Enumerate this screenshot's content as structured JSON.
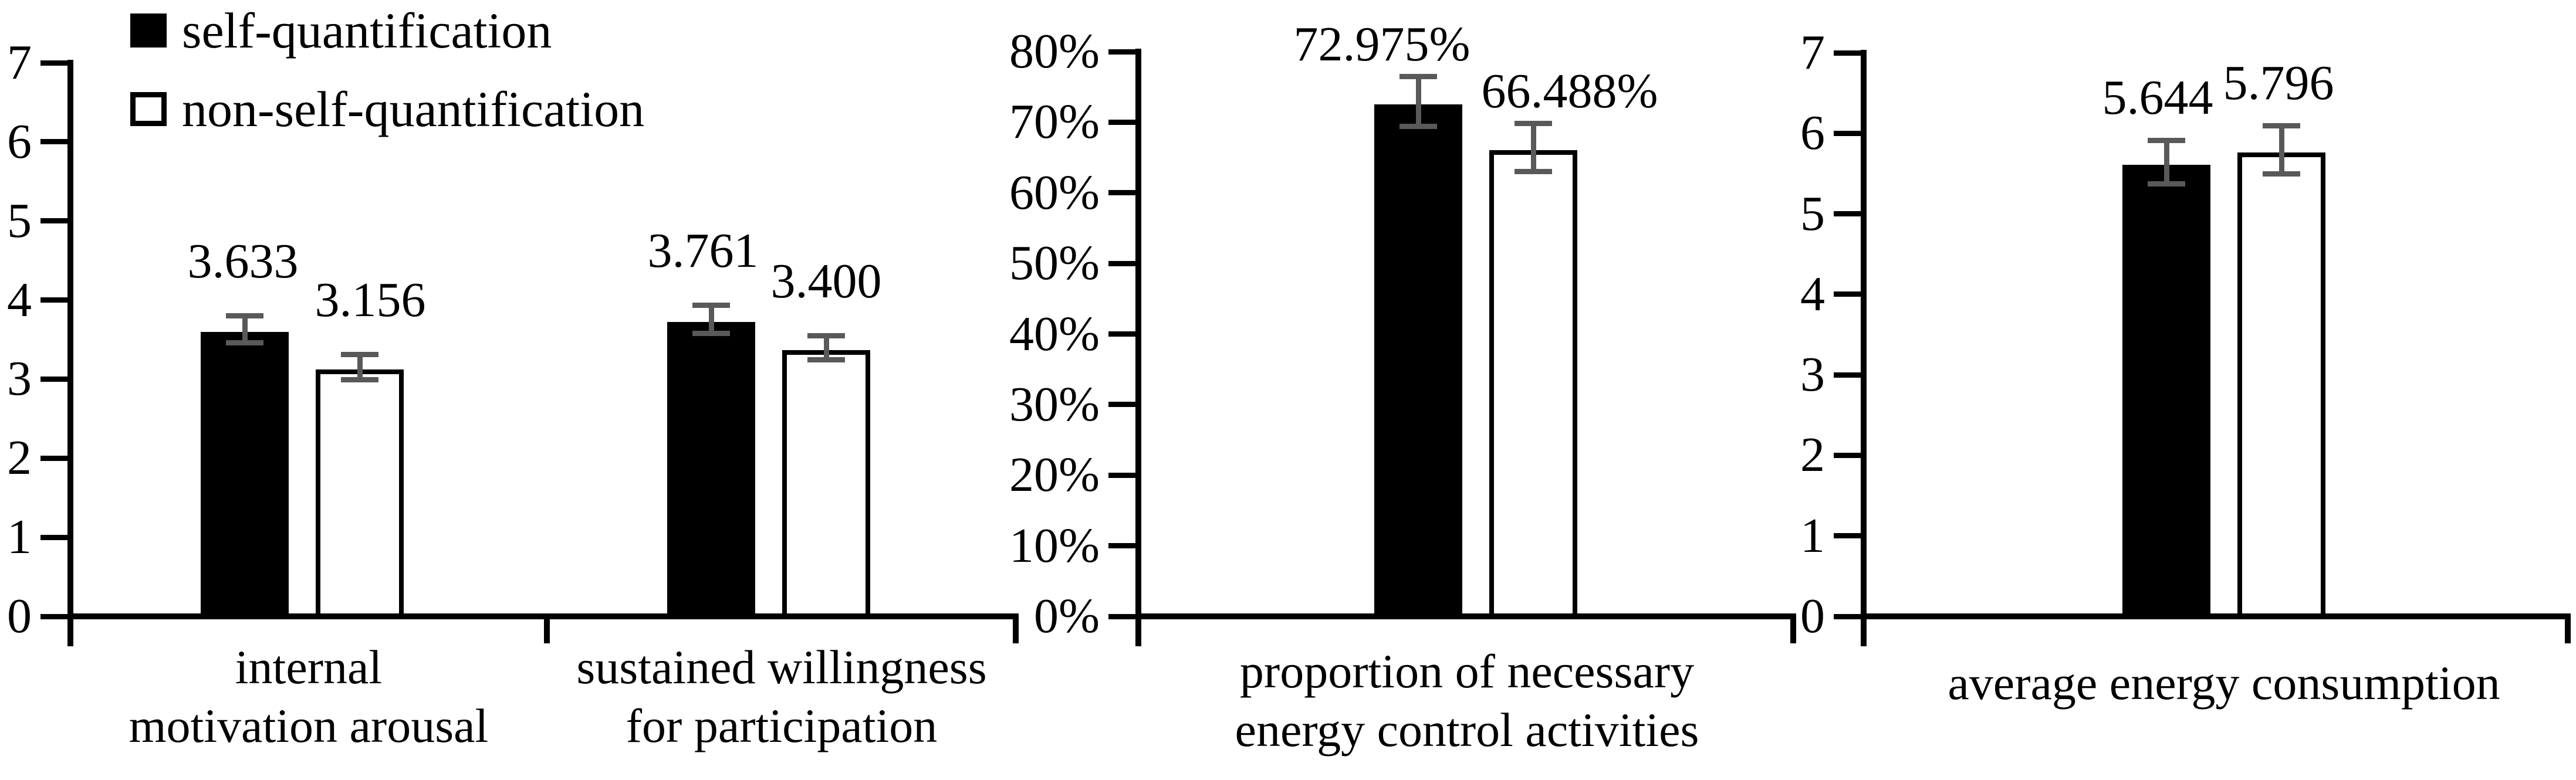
{
  "figure": {
    "background": "#ffffff",
    "legend": {
      "position": "top-left",
      "items": [
        {
          "label": "self-quantification",
          "swatch": "black-filled-square",
          "fill": "#000000"
        },
        {
          "label": "non-self-quantification",
          "swatch": "white-square-black-border",
          "fill": "#ffffff"
        }
      ]
    }
  },
  "colors": {
    "axis": "#000000",
    "bar_self_quantification": "#000000",
    "bar_non_self_quantification": "#ffffff",
    "bar_outline": "#000000",
    "error_bar": "#595959",
    "text": "#000000",
    "background": "#ffffff"
  },
  "chart_data": [
    {
      "type": "bar",
      "title": "",
      "xlabel": "",
      "ylabel": "",
      "grid": false,
      "y_axis": {
        "min": 0,
        "max": 7,
        "step": 1,
        "format": "number",
        "tick_labels": [
          "0",
          "1",
          "2",
          "3",
          "4",
          "5",
          "6",
          "7"
        ]
      },
      "categories": [
        {
          "label": "internal motivation arousal",
          "lines": [
            "internal",
            "motivation arousal"
          ]
        },
        {
          "label": "sustained willingness for participation",
          "lines": [
            "sustained willingness",
            "for  participation"
          ]
        }
      ],
      "series": [
        {
          "name": "self-quantification",
          "fill": "#000000",
          "values": [
            3.633,
            3.761
          ],
          "value_labels": [
            "3.633",
            "3.761"
          ],
          "errors": [
            0.17,
            0.18
          ]
        },
        {
          "name": "non-self-quantification",
          "fill": "#ffffff",
          "values": [
            3.156,
            3.4
          ],
          "value_labels": [
            "3.156",
            "3.400"
          ],
          "errors": [
            0.16,
            0.15
          ]
        }
      ]
    },
    {
      "type": "bar",
      "title": "",
      "xlabel": "",
      "ylabel": "",
      "grid": false,
      "y_axis": {
        "min": 0,
        "max": 80,
        "step": 10,
        "format": "percent",
        "tick_labels": [
          "0%",
          "10%",
          "20%",
          "30%",
          "40%",
          "50%",
          "60%",
          "70%",
          "80%"
        ]
      },
      "categories": [
        {
          "label": "proportion of necessary energy control activities",
          "lines": [
            "proportion of necessary",
            "energy control activities"
          ]
        }
      ],
      "series": [
        {
          "name": "self-quantification",
          "fill": "#000000",
          "values": [
            72.975
          ],
          "value_labels": [
            "72.975%"
          ],
          "errors": [
            3.5
          ]
        },
        {
          "name": "non-self-quantification",
          "fill": "#ffffff",
          "values": [
            66.488
          ],
          "value_labels": [
            "66.488%"
          ],
          "errors": [
            3.4
          ]
        }
      ]
    },
    {
      "type": "bar",
      "title": "",
      "xlabel": "",
      "ylabel": "",
      "grid": false,
      "y_axis": {
        "min": 0,
        "max": 7,
        "step": 1,
        "format": "number",
        "tick_labels": [
          "0",
          "1",
          "2",
          "3",
          "4",
          "5",
          "6",
          "7"
        ]
      },
      "categories": [
        {
          "label": "average energy consumption",
          "lines": [
            "average energy consumption"
          ]
        }
      ],
      "series": [
        {
          "name": "self-quantification",
          "fill": "#000000",
          "values": [
            5.644
          ],
          "value_labels": [
            "5.644"
          ],
          "errors": [
            0.27
          ]
        },
        {
          "name": "non-self-quantification",
          "fill": "#ffffff",
          "values": [
            5.796
          ],
          "value_labels": [
            "5.796"
          ],
          "errors": [
            0.3
          ]
        }
      ]
    }
  ]
}
